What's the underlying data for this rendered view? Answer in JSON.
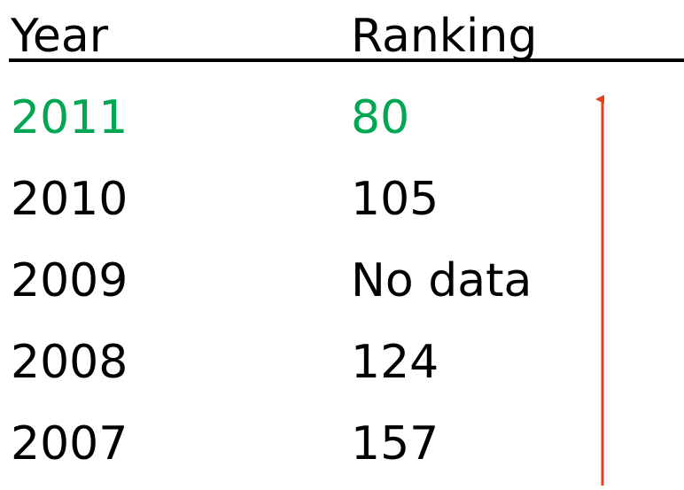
{
  "table": {
    "header": [
      "Year",
      "Ranking"
    ],
    "rows": [
      [
        2011,
        80
      ],
      [
        2010,
        105
      ],
      [
        2009,
        "No data"
      ],
      [
        2008,
        124
      ],
      [
        2007,
        157
      ]
    ]
  }
}
